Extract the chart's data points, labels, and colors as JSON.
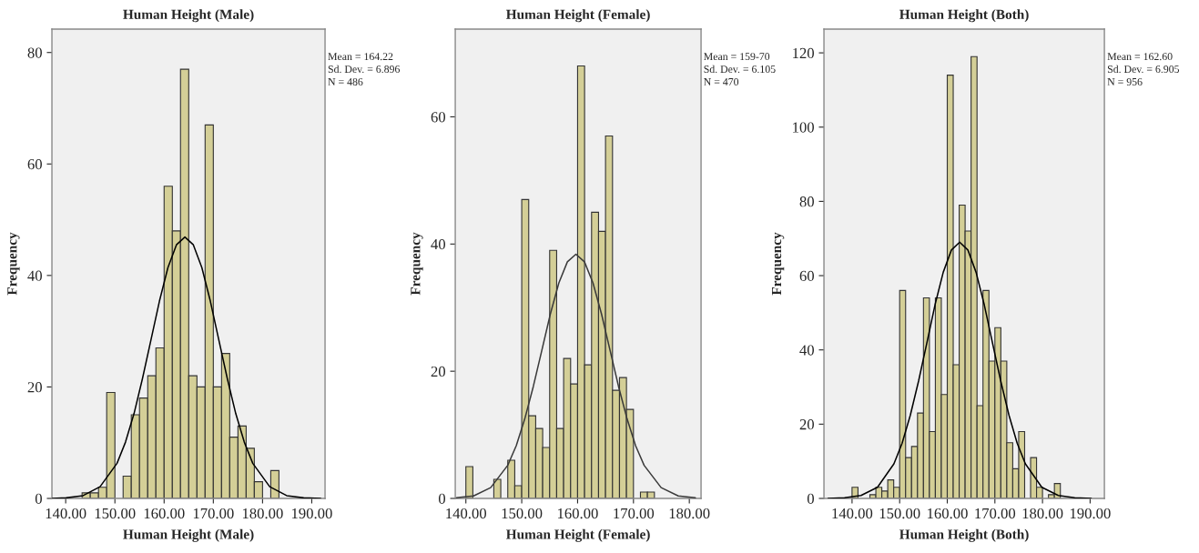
{
  "chart_data": [
    {
      "type": "histogram",
      "title": "Human Height (Male)",
      "xlabel": "Human Height (Male)",
      "ylabel": "Frequency",
      "color": "#d4cf97",
      "bins": [
        143.33,
        145,
        146.67,
        148.33,
        150,
        151.67,
        153.33,
        155,
        156.67,
        158.33,
        160,
        161.67,
        163.33,
        165,
        166.67,
        168.33,
        170,
        171.67,
        173.33,
        175,
        176.67,
        178.33,
        180,
        181.67,
        183.33
      ],
      "values": [
        1,
        1,
        2,
        19,
        0,
        4,
        15,
        18,
        22,
        27,
        56,
        48,
        77,
        22,
        20,
        67,
        20,
        26,
        11,
        13,
        9,
        3,
        0,
        5
      ],
      "series": [
        {
          "type": "line",
          "color": "#000000",
          "x": [
            137.33,
            140.08,
            143.53,
            146.98,
            150.43,
            152.15,
            153.88,
            155.6,
            157.32,
            159.05,
            160.77,
            162.5,
            164.22,
            165.94,
            167.67,
            169.39,
            171.12,
            172.84,
            174.56,
            176.29,
            178.01,
            181.46,
            184.91,
            188.36,
            191.8
          ],
          "values": [
            0.0,
            0.1,
            0.5,
            2.1,
            6.3,
            10.1,
            15.2,
            21.5,
            28.4,
            35.4,
            41.4,
            45.5,
            46.9,
            45.5,
            41.4,
            35.4,
            28.4,
            21.5,
            15.2,
            10.1,
            6.3,
            2.1,
            0.5,
            0.1,
            0.0
          ]
        }
      ],
      "xlim": [
        137.2,
        192.7
      ],
      "ylim": [
        0,
        84.2
      ],
      "xticks": [
        {
          "value": 140,
          "label": "140.00"
        },
        {
          "value": 150,
          "label": "150.00"
        },
        {
          "value": 160,
          "label": "160.00"
        },
        {
          "value": 170,
          "label": "170.00"
        },
        {
          "value": 180,
          "label": "180.00"
        },
        {
          "value": 190,
          "label": "190.00"
        }
      ],
      "yticks": [
        0,
        20,
        40,
        60,
        80
      ],
      "annotations": [
        "Mean = 164.22",
        "Sd. Dev. = 6.896",
        "N = 486"
      ]
    },
    {
      "type": "histogram",
      "title": "Human Height (Female)",
      "xlabel": "Human Height (Female)",
      "ylabel": "Frequency",
      "color": "#d4cf97",
      "bins": [
        140,
        141.25,
        142.5,
        143.75,
        145,
        146.25,
        147.5,
        148.75,
        150,
        151.25,
        152.5,
        153.75,
        155,
        156.25,
        157.5,
        158.75,
        160,
        161.25,
        162.5,
        163.75,
        165,
        166.25,
        167.5,
        168.75,
        170,
        171.25,
        172.5,
        173.75
      ],
      "values": [
        5,
        0,
        0,
        0,
        3,
        0,
        6,
        2,
        47,
        13,
        11,
        8,
        39,
        11,
        22,
        18,
        68,
        21,
        45,
        42,
        57,
        17,
        19,
        14,
        0,
        1,
        1
      ],
      "series": [
        {
          "type": "line",
          "color": "#3a3a3a",
          "x": [
            138.33,
            141.38,
            144.44,
            147.49,
            149.02,
            150.54,
            152.07,
            153.6,
            155.12,
            156.65,
            158.17,
            159.7,
            161.23,
            162.75,
            164.28,
            165.81,
            167.33,
            168.86,
            170.38,
            171.91,
            174.96,
            178.02,
            181.07
          ],
          "values": [
            0.1,
            0.4,
            1.7,
            5.2,
            8.3,
            12.5,
            17.6,
            23.3,
            29.0,
            33.9,
            37.2,
            38.4,
            37.2,
            33.9,
            29.0,
            23.3,
            17.6,
            12.5,
            8.3,
            5.2,
            1.7,
            0.4,
            0.1
          ]
        }
      ],
      "xlim": [
        138.1,
        182.1
      ],
      "ylim": [
        0,
        73.8
      ],
      "xticks": [
        {
          "value": 140,
          "label": "140.00"
        },
        {
          "value": 150,
          "label": "150.00"
        },
        {
          "value": 160,
          "label": "160.00"
        },
        {
          "value": 170,
          "label": "170.00"
        },
        {
          "value": 180,
          "label": "180.00"
        }
      ],
      "yticks": [
        0,
        20,
        40,
        60
      ],
      "annotations": [
        "Mean = 159-70",
        "Sd. Dev. = 6.105",
        "N = 470"
      ]
    },
    {
      "type": "histogram",
      "title": "Human Height (Both)",
      "xlabel": "Human Height (Both)",
      "ylabel": "Frequency",
      "color": "#d4cf97",
      "bins": [
        140,
        141.25,
        142.5,
        143.75,
        145,
        146.25,
        147.5,
        148.75,
        150,
        151.25,
        152.5,
        153.75,
        155,
        156.25,
        157.5,
        158.75,
        160,
        161.25,
        162.5,
        163.75,
        165,
        166.25,
        167.5,
        168.75,
        170,
        171.25,
        172.5,
        173.75,
        175,
        176.25,
        177.5,
        178.75,
        180,
        181.25,
        182.5,
        183.75
      ],
      "values": [
        3,
        0,
        0,
        1,
        3,
        2,
        5,
        3,
        56,
        11,
        14,
        23,
        54,
        18,
        54,
        28,
        114,
        36,
        79,
        72,
        119,
        25,
        56,
        37,
        46,
        37,
        15,
        8,
        18,
        0,
        11,
        3,
        0,
        1,
        4
      ],
      "series": [
        {
          "type": "line",
          "color": "#000000",
          "x": [
            134.98,
            138.43,
            141.88,
            145.34,
            148.79,
            150.52,
            152.24,
            153.97,
            155.7,
            157.42,
            159.15,
            160.87,
            162.6,
            164.33,
            166.05,
            167.78,
            169.51,
            171.23,
            172.96,
            174.68,
            176.41,
            179.86,
            183.32,
            186.77,
            190.22
          ],
          "values": [
            0.0,
            0.2,
            0.8,
            3.0,
            9.3,
            14.9,
            22.4,
            31.6,
            41.8,
            52.1,
            60.9,
            66.9,
            69.0,
            66.9,
            60.9,
            52.1,
            41.8,
            31.6,
            22.4,
            14.9,
            9.3,
            3.0,
            0.8,
            0.2,
            0.0
          ]
        }
      ],
      "xlim": [
        134.1,
        193.0
      ],
      "ylim": [
        0,
        126.4
      ],
      "xticks": [
        {
          "value": 140,
          "label": "140.00"
        },
        {
          "value": 150,
          "label": "150.00"
        },
        {
          "value": 160,
          "label": "160.00"
        },
        {
          "value": 170,
          "label": "170.00"
        },
        {
          "value": 180,
          "label": "180.00"
        },
        {
          "value": 190,
          "label": "190.00"
        }
      ],
      "yticks": [
        0,
        20,
        40,
        60,
        80,
        100,
        120
      ],
      "annotations": [
        "Mean = 162.60",
        "Sd. Dev. = 6.905",
        "N = 956"
      ]
    }
  ]
}
